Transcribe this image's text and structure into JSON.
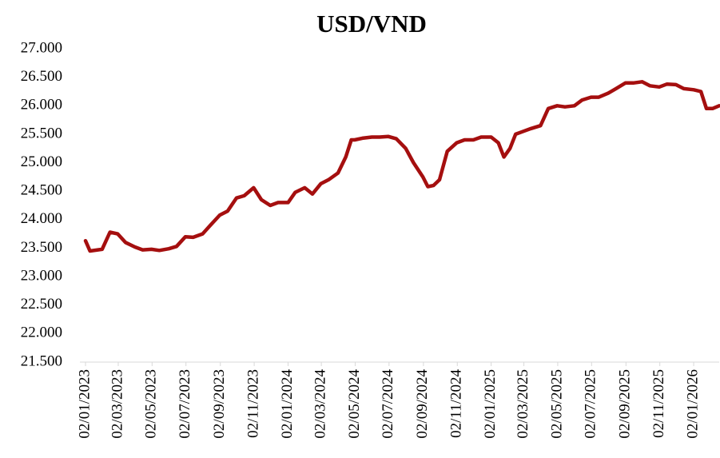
{
  "chart_data": {
    "type": "line",
    "title": "USD/VND",
    "x": [
      "2023-01-02",
      "2023-01-10",
      "2023-02-01",
      "2023-02-15",
      "2023-03-01",
      "2023-03-15",
      "2023-04-01",
      "2023-04-15",
      "2023-05-01",
      "2023-05-15",
      "2023-06-01",
      "2023-06-15",
      "2023-07-01",
      "2023-07-15",
      "2023-08-01",
      "2023-08-15",
      "2023-09-01",
      "2023-09-15",
      "2023-10-01",
      "2023-10-15",
      "2023-11-01",
      "2023-11-15",
      "2023-12-01",
      "2023-12-15",
      "2024-01-02",
      "2024-01-15",
      "2024-02-01",
      "2024-02-15",
      "2024-03-01",
      "2024-03-15",
      "2024-04-01",
      "2024-04-15",
      "2024-04-25",
      "2024-05-01",
      "2024-05-15",
      "2024-06-01",
      "2024-06-15",
      "2024-07-01",
      "2024-07-15",
      "2024-08-01",
      "2024-08-15",
      "2024-09-01",
      "2024-09-10",
      "2024-09-20",
      "2024-10-01",
      "2024-10-15",
      "2024-11-01",
      "2024-11-15",
      "2024-12-01",
      "2024-12-15",
      "2025-01-02",
      "2025-01-15",
      "2025-01-25",
      "2025-02-05",
      "2025-02-15",
      "2025-03-01",
      "2025-03-15",
      "2025-04-01",
      "2025-04-15",
      "2025-05-01",
      "2025-05-15",
      "2025-06-01",
      "2025-06-15",
      "2025-07-01",
      "2025-07-15",
      "2025-08-01",
      "2025-08-15",
      "2025-09-01",
      "2025-09-15",
      "2025-10-01",
      "2025-10-15",
      "2025-11-01",
      "2025-11-15",
      "2025-12-01",
      "2025-12-15",
      "2026-01-02",
      "2026-01-15",
      "2026-01-25",
      "2026-02-05",
      "2026-02-17"
    ],
    "series": [
      {
        "name": "USD/VND",
        "color": "#a50f0f",
        "values": [
          23630,
          23450,
          23480,
          23780,
          23750,
          23600,
          23520,
          23470,
          23480,
          23460,
          23490,
          23530,
          23700,
          23690,
          23750,
          23900,
          24080,
          24150,
          24380,
          24420,
          24560,
          24350,
          24250,
          24300,
          24300,
          24480,
          24560,
          24450,
          24630,
          24700,
          24820,
          25100,
          25400,
          25400,
          25430,
          25450,
          25450,
          25460,
          25420,
          25250,
          25000,
          24750,
          24580,
          24600,
          24700,
          25200,
          25350,
          25400,
          25400,
          25450,
          25450,
          25350,
          25100,
          25250,
          25500,
          25550,
          25600,
          25650,
          25950,
          26000,
          25980,
          26000,
          26100,
          26150,
          26150,
          26220,
          26300,
          26400,
          26400,
          26420,
          26350,
          26330,
          26380,
          26370,
          26300,
          26280,
          26250,
          25950,
          25950,
          26000
        ]
      }
    ],
    "xlim": [
      "2023-01-02",
      "2026-02-17"
    ],
    "xticks": [
      {
        "value": "2023-01-02",
        "label": "02/01/2023"
      },
      {
        "value": "2023-03-02",
        "label": "02/03/2023"
      },
      {
        "value": "2023-05-02",
        "label": "02/05/2023"
      },
      {
        "value": "2023-07-02",
        "label": "02/07/2023"
      },
      {
        "value": "2023-09-02",
        "label": "02/09/2023"
      },
      {
        "value": "2023-11-02",
        "label": "02/11/2023"
      },
      {
        "value": "2024-01-02",
        "label": "02/01/2024"
      },
      {
        "value": "2024-03-02",
        "label": "02/03/2024"
      },
      {
        "value": "2024-05-02",
        "label": "02/05/2024"
      },
      {
        "value": "2024-07-02",
        "label": "02/07/2024"
      },
      {
        "value": "2024-09-02",
        "label": "02/09/2024"
      },
      {
        "value": "2024-11-02",
        "label": "02/11/2024"
      },
      {
        "value": "2025-01-02",
        "label": "02/01/2025"
      },
      {
        "value": "2025-03-02",
        "label": "02/03/2025"
      },
      {
        "value": "2025-05-02",
        "label": "02/05/2025"
      },
      {
        "value": "2025-07-02",
        "label": "02/07/2025"
      },
      {
        "value": "2025-09-02",
        "label": "02/09/2025"
      },
      {
        "value": "2025-11-02",
        "label": "02/11/2025"
      },
      {
        "value": "2026-01-02",
        "label": "02/01/2026"
      }
    ],
    "ylim": [
      21500,
      27000
    ],
    "yticks": [
      {
        "value": 21500,
        "label": "21.500"
      },
      {
        "value": 22000,
        "label": "22.000"
      },
      {
        "value": 22500,
        "label": "22.500"
      },
      {
        "value": 23000,
        "label": "23.000"
      },
      {
        "value": 23500,
        "label": "23.500"
      },
      {
        "value": 24000,
        "label": "24.000"
      },
      {
        "value": 24500,
        "label": "24.500"
      },
      {
        "value": 25000,
        "label": "25.000"
      },
      {
        "value": 25500,
        "label": "25.500"
      },
      {
        "value": 26000,
        "label": "26.000"
      },
      {
        "value": 26500,
        "label": "26.500"
      },
      {
        "value": 27000,
        "label": "27.000"
      }
    ],
    "grid": false
  }
}
